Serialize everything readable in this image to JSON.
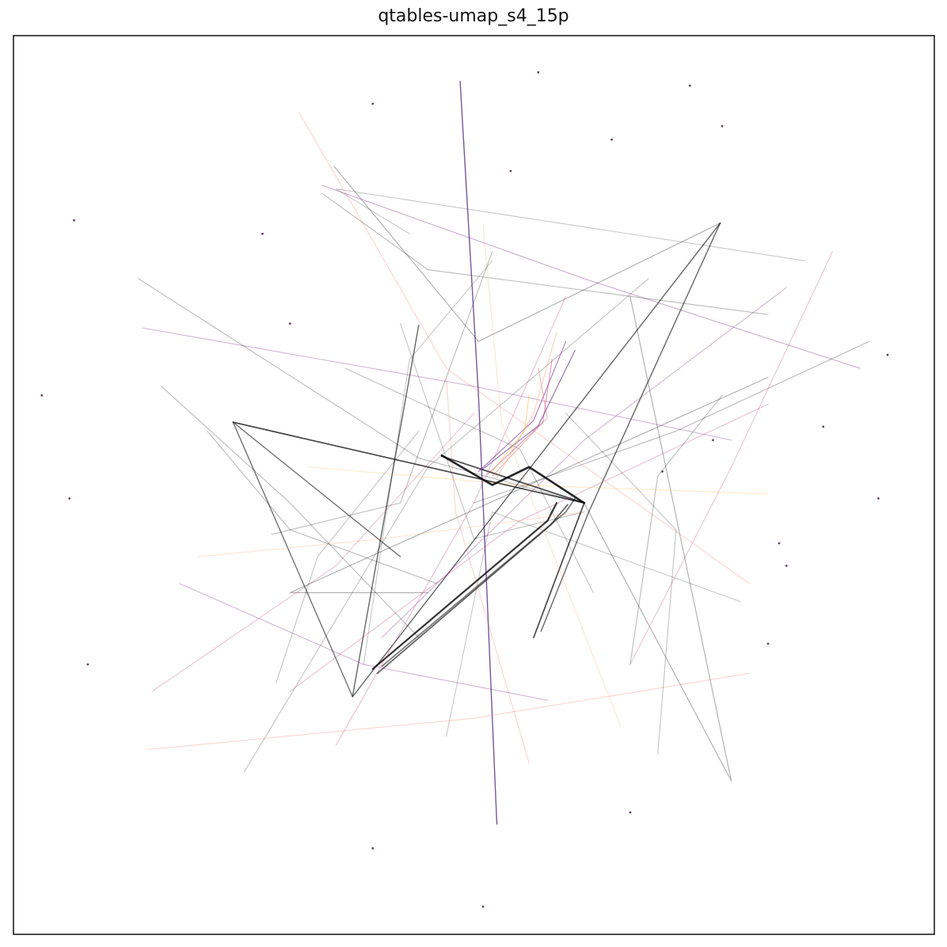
{
  "chart_data": {
    "type": "line",
    "title": "qtables-umap_s4_15p",
    "xlabel": "",
    "ylabel": "",
    "xlim": [
      0,
      1
    ],
    "ylim": [
      0,
      1
    ],
    "grid": false,
    "ticks": false,
    "legend": "none",
    "colormap": "magma",
    "series": [
      {
        "color": "#000000",
        "opacity": 0.75,
        "width": 1.6,
        "points": [
          [
            0.238,
            0.57
          ],
          [
            0.62,
            0.48
          ],
          [
            0.565,
            0.33
          ]
        ]
      },
      {
        "color": "#000000",
        "opacity": 0.6,
        "width": 1.4,
        "points": [
          [
            0.768,
            0.792
          ],
          [
            0.625,
            0.47
          ],
          [
            0.573,
            0.337
          ]
        ]
      },
      {
        "color": "#000000",
        "opacity": 0.6,
        "width": 1.4,
        "points": [
          [
            0.768,
            0.792
          ],
          [
            0.368,
            0.264
          ],
          [
            0.44,
            0.678
          ]
        ]
      },
      {
        "color": "#000000",
        "opacity": 0.55,
        "width": 1.4,
        "points": [
          [
            0.368,
            0.264
          ],
          [
            0.238,
            0.57
          ],
          [
            0.42,
            0.42
          ]
        ]
      },
      {
        "color": "#000000",
        "opacity": 0.8,
        "width": 2.2,
        "points": [
          [
            0.39,
            0.295
          ],
          [
            0.58,
            0.46
          ],
          [
            0.59,
            0.48
          ]
        ]
      },
      {
        "color": "#000000",
        "opacity": 0.6,
        "width": 1.8,
        "points": [
          [
            0.395,
            0.29
          ],
          [
            0.583,
            0.455
          ],
          [
            0.602,
            0.478
          ]
        ]
      },
      {
        "color": "#000000",
        "opacity": 0.5,
        "width": 1.8,
        "points": [
          [
            0.4,
            0.298
          ],
          [
            0.6,
            0.47
          ],
          [
            0.61,
            0.485
          ]
        ]
      },
      {
        "color": "#000000",
        "opacity": 0.7,
        "width": 1.8,
        "points": [
          [
            0.465,
            0.532
          ],
          [
            0.59,
            0.49
          ],
          [
            0.62,
            0.48
          ]
        ]
      },
      {
        "color": "#000000",
        "opacity": 0.3,
        "width": 1.2,
        "points": [
          [
            0.348,
            0.855
          ],
          [
            0.505,
            0.66
          ],
          [
            0.768,
            0.792
          ]
        ]
      },
      {
        "color": "#000000",
        "opacity": 0.25,
        "width": 1.2,
        "points": [
          [
            0.335,
            0.825
          ],
          [
            0.45,
            0.74
          ],
          [
            0.82,
            0.69
          ]
        ]
      },
      {
        "color": "#000000",
        "opacity": 0.3,
        "width": 1.2,
        "points": [
          [
            0.82,
            0.62
          ],
          [
            0.3,
            0.38
          ],
          [
            0.45,
            0.38
          ]
        ]
      },
      {
        "color": "#000000",
        "opacity": 0.25,
        "width": 1.2,
        "points": [
          [
            0.135,
            0.73
          ],
          [
            0.44,
            0.53
          ],
          [
            0.62,
            0.48
          ]
        ]
      },
      {
        "color": "#000000",
        "opacity": 0.3,
        "width": 1.2,
        "points": [
          [
            0.67,
            0.71
          ],
          [
            0.78,
            0.17
          ],
          [
            0.62,
            0.48
          ]
        ]
      },
      {
        "color": "#000000",
        "opacity": 0.25,
        "width": 1.2,
        "points": [
          [
            0.52,
            0.76
          ],
          [
            0.42,
            0.48
          ],
          [
            0.28,
            0.445
          ]
        ]
      },
      {
        "color": "#000000",
        "opacity": 0.25,
        "width": 1.2,
        "points": [
          [
            0.21,
            0.56
          ],
          [
            0.3,
            0.45
          ],
          [
            0.46,
            0.39
          ]
        ]
      },
      {
        "color": "#000000",
        "opacity": 0.22,
        "width": 1.2,
        "points": [
          [
            0.25,
            0.18
          ],
          [
            0.45,
            0.52
          ],
          [
            0.69,
            0.73
          ]
        ]
      },
      {
        "color": "#000000",
        "opacity": 0.25,
        "width": 1.2,
        "points": [
          [
            0.93,
            0.66
          ],
          [
            0.72,
            0.56
          ],
          [
            0.5,
            0.48
          ]
        ]
      },
      {
        "color": "#000000",
        "opacity": 0.22,
        "width": 1.2,
        "points": [
          [
            0.63,
            0.38
          ],
          [
            0.55,
            0.54
          ],
          [
            0.36,
            0.63
          ]
        ]
      },
      {
        "color": "#000000",
        "opacity": 0.22,
        "width": 1.2,
        "points": [
          [
            0.7,
            0.2
          ],
          [
            0.72,
            0.45
          ],
          [
            0.6,
            0.58
          ]
        ]
      },
      {
        "color": "#000000",
        "opacity": 0.22,
        "width": 1.2,
        "points": [
          [
            0.42,
            0.68
          ],
          [
            0.5,
            0.44
          ],
          [
            0.62,
            0.47
          ]
        ]
      },
      {
        "color": "#000000",
        "opacity": 0.22,
        "width": 1.2,
        "points": [
          [
            0.285,
            0.28
          ],
          [
            0.33,
            0.42
          ],
          [
            0.44,
            0.56
          ]
        ]
      },
      {
        "color": "#000000",
        "opacity": 0.25,
        "width": 1.2,
        "points": [
          [
            0.44,
            0.33
          ],
          [
            0.3,
            0.48
          ],
          [
            0.16,
            0.61
          ]
        ]
      },
      {
        "color": "#000000",
        "opacity": 0.25,
        "width": 1.2,
        "points": [
          [
            0.67,
            0.3
          ],
          [
            0.7,
            0.51
          ],
          [
            0.77,
            0.6
          ]
        ]
      },
      {
        "color": "#000000",
        "opacity": 0.2,
        "width": 1.2,
        "points": [
          [
            0.86,
            0.75
          ],
          [
            0.35,
            0.83
          ],
          [
            0.43,
            0.78
          ]
        ]
      },
      {
        "color": "#000000",
        "opacity": 0.2,
        "width": 1.2,
        "points": [
          [
            0.47,
            0.22
          ],
          [
            0.52,
            0.47
          ],
          [
            0.79,
            0.37
          ]
        ]
      },
      {
        "color": "#000000",
        "opacity": 0.2,
        "width": 1.2,
        "points": [
          [
            0.38,
            0.3
          ],
          [
            0.43,
            0.64
          ],
          [
            0.52,
            0.75
          ]
        ]
      },
      {
        "color": "#3b0f70",
        "opacity": 0.7,
        "width": 1.4,
        "points": [
          [
            0.525,
            0.122
          ],
          [
            0.505,
            0.6
          ],
          [
            0.485,
            0.95
          ]
        ]
      },
      {
        "color": "#721f81",
        "opacity": 0.35,
        "width": 1.2,
        "points": [
          [
            0.335,
            0.834
          ],
          [
            0.62,
            0.73
          ],
          [
            0.92,
            0.63
          ]
        ]
      },
      {
        "color": "#721f81",
        "opacity": 0.3,
        "width": 1.2,
        "points": [
          [
            0.14,
            0.675
          ],
          [
            0.5,
            0.61
          ],
          [
            0.78,
            0.55
          ]
        ]
      },
      {
        "color": "#721f81",
        "opacity": 0.3,
        "width": 1.2,
        "points": [
          [
            0.18,
            0.39
          ],
          [
            0.38,
            0.3
          ],
          [
            0.58,
            0.26
          ]
        ]
      },
      {
        "color": "#721f81",
        "opacity": 0.3,
        "width": 1.2,
        "points": [
          [
            0.84,
            0.72
          ],
          [
            0.62,
            0.55
          ],
          [
            0.4,
            0.33
          ]
        ]
      },
      {
        "color": "#b73779",
        "opacity": 0.3,
        "width": 1.2,
        "points": [
          [
            0.35,
            0.21
          ],
          [
            0.5,
            0.48
          ],
          [
            0.6,
            0.71
          ]
        ]
      },
      {
        "color": "#b73779",
        "opacity": 0.3,
        "width": 1.2,
        "points": [
          [
            0.3,
            0.27
          ],
          [
            0.55,
            0.46
          ],
          [
            0.82,
            0.59
          ]
        ]
      },
      {
        "color": "#b73779",
        "opacity": 0.28,
        "width": 1.2,
        "points": [
          [
            0.15,
            0.27
          ],
          [
            0.35,
            0.41
          ],
          [
            0.5,
            0.58
          ]
        ]
      },
      {
        "color": "#b73779",
        "opacity": 0.28,
        "width": 1.2,
        "points": [
          [
            0.89,
            0.76
          ],
          [
            0.78,
            0.52
          ],
          [
            0.67,
            0.3
          ]
        ]
      },
      {
        "color": "#f1605d",
        "opacity": 0.25,
        "width": 1.2,
        "points": [
          [
            0.145,
            0.205
          ],
          [
            0.5,
            0.24
          ],
          [
            0.8,
            0.29
          ]
        ]
      },
      {
        "color": "#f1605d",
        "opacity": 0.25,
        "width": 1.2,
        "points": [
          [
            0.31,
            0.915
          ],
          [
            0.47,
            0.63
          ],
          [
            0.8,
            0.39
          ]
        ]
      },
      {
        "color": "#f1605d",
        "opacity": 0.25,
        "width": 1.2,
        "points": [
          [
            0.56,
            0.19
          ],
          [
            0.48,
            0.47
          ],
          [
            0.47,
            0.62
          ]
        ]
      },
      {
        "color": "#fca50a",
        "opacity": 0.22,
        "width": 1.2,
        "points": [
          [
            0.32,
            0.52
          ],
          [
            0.55,
            0.5
          ],
          [
            0.82,
            0.49
          ]
        ]
      },
      {
        "color": "#fd9668",
        "opacity": 0.25,
        "width": 1.2,
        "points": [
          [
            0.2,
            0.42
          ],
          [
            0.4,
            0.44
          ],
          [
            0.62,
            0.47
          ]
        ]
      },
      {
        "color": "#fd9668",
        "opacity": 0.25,
        "width": 1.2,
        "points": [
          [
            0.51,
            0.79
          ],
          [
            0.53,
            0.57
          ],
          [
            0.66,
            0.23
          ]
        ]
      },
      {
        "color": "#000004",
        "opacity": 0.85,
        "width": 2.6,
        "points": [
          [
            0.465,
            0.533
          ],
          [
            0.52,
            0.5
          ],
          [
            0.56,
            0.52
          ],
          [
            0.62,
            0.48
          ]
        ]
      },
      {
        "color": "#3b0f70",
        "opacity": 0.55,
        "width": 1.2,
        "points": [
          [
            0.51,
            0.518
          ],
          [
            0.57,
            0.566
          ],
          [
            0.61,
            0.65
          ]
        ]
      },
      {
        "color": "#721f81",
        "opacity": 0.55,
        "width": 1.2,
        "points": [
          [
            0.505,
            0.515
          ],
          [
            0.565,
            0.572
          ],
          [
            0.6,
            0.66
          ]
        ]
      },
      {
        "color": "#b73779",
        "opacity": 0.5,
        "width": 1.1,
        "points": [
          [
            0.515,
            0.512
          ],
          [
            0.575,
            0.57
          ],
          [
            0.585,
            0.64
          ]
        ]
      },
      {
        "color": "#f1605d",
        "opacity": 0.5,
        "width": 1.0,
        "points": [
          [
            0.52,
            0.51
          ],
          [
            0.58,
            0.575
          ],
          [
            0.57,
            0.63
          ]
        ]
      },
      {
        "color": "#fd9668",
        "opacity": 0.5,
        "width": 1.0,
        "points": [
          [
            0.525,
            0.508
          ],
          [
            0.565,
            0.58
          ],
          [
            0.59,
            0.67
          ]
        ]
      },
      {
        "color": "#fca50a",
        "opacity": 0.45,
        "width": 1.0,
        "points": [
          [
            0.52,
            0.515
          ],
          [
            0.555,
            0.56
          ],
          [
            0.56,
            0.6
          ]
        ]
      }
    ],
    "points": [
      [
        0.57,
        0.96
      ],
      [
        0.735,
        0.945
      ],
      [
        0.65,
        0.885
      ],
      [
        0.39,
        0.925
      ],
      [
        0.77,
        0.9
      ],
      [
        0.065,
        0.795
      ],
      [
        0.03,
        0.6
      ],
      [
        0.06,
        0.485
      ],
      [
        0.08,
        0.3
      ],
      [
        0.95,
        0.645
      ],
      [
        0.94,
        0.485
      ],
      [
        0.832,
        0.435
      ],
      [
        0.82,
        0.323
      ],
      [
        0.67,
        0.135
      ],
      [
        0.39,
        0.095
      ],
      [
        0.51,
        0.03
      ],
      [
        0.27,
        0.78
      ],
      [
        0.54,
        0.85
      ],
      [
        0.3,
        0.68
      ],
      [
        0.76,
        0.55
      ],
      [
        0.84,
        0.41
      ],
      [
        0.705,
        0.515
      ],
      [
        0.88,
        0.565
      ]
    ]
  }
}
